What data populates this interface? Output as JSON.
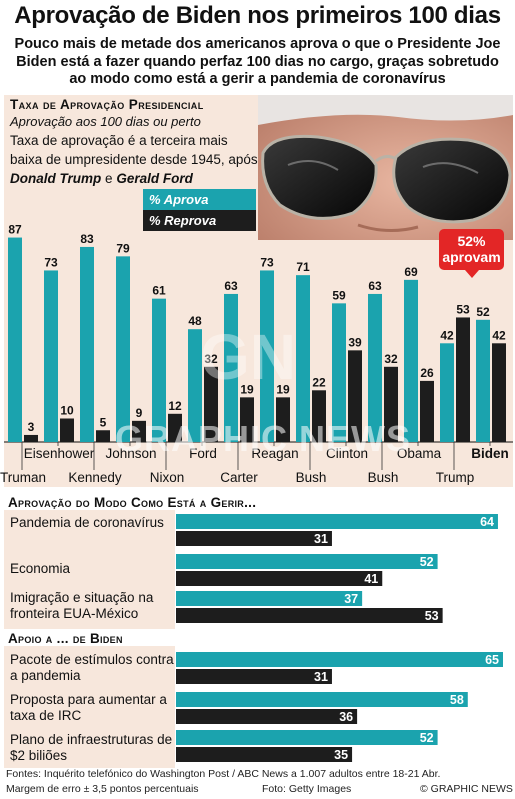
{
  "header": {
    "title": "Aprovação de Biden nos primeiros 100 dias",
    "subtitle": "Pouco mais de metade dos americanos aprova o que o Presidente Joe Biden está a fazer quando perfaz 100 dias no cargo, graças sobretudo ao modo como está a gerir a pandemia de coronavírus"
  },
  "approval_panel": {
    "title": "Taxa de Aprovação Presidencial",
    "subtitle": "Aprovação aos 100 dias ou perto",
    "note_prefix": "Taxa de aprovação é a terceira mais baixa de umpresidente desde 1945, após",
    "note_name1": "Donald Trump",
    "note_and": "e",
    "note_name2": "Gerald Ford",
    "legend_approve": "% Aprova",
    "legend_disapprove": "% Reprova",
    "callout": "52% aprovam"
  },
  "colors": {
    "approve": "#1ba3ae",
    "disapprove": "#1d1d1d",
    "panel": "#f7e7dc",
    "callout": "#e32626"
  },
  "chart_data": [
    {
      "type": "bar",
      "title": "Taxa de Aprovação Presidencial",
      "categories": [
        "Truman",
        "Eisenhower",
        "Kennedy",
        "Johnson",
        "Nixon",
        "Ford",
        "Carter",
        "Reagan",
        "Bush",
        "Clinton",
        "Bush",
        "Obama",
        "Trump",
        "Biden"
      ],
      "series": [
        {
          "name": "% Aprova",
          "values": [
            87,
            73,
            83,
            79,
            61,
            48,
            63,
            73,
            71,
            59,
            63,
            69,
            42,
            52
          ]
        },
        {
          "name": "% Reprova",
          "values": [
            3,
            10,
            5,
            9,
            12,
            32,
            19,
            19,
            22,
            39,
            32,
            26,
            53,
            42
          ]
        }
      ],
      "ylim": [
        0,
        100
      ]
    },
    {
      "type": "bar",
      "title": "Aprovação do Modo Como Está a Gerir...",
      "categories": [
        "Pandemia de coronavírus",
        "Economia",
        "Imigração e situação na fronteira EUA-México"
      ],
      "series": [
        {
          "name": "% Aprova",
          "values": [
            64,
            52,
            37
          ]
        },
        {
          "name": "% Reprova",
          "values": [
            31,
            41,
            53
          ]
        }
      ],
      "xlim": [
        0,
        65
      ]
    },
    {
      "type": "bar",
      "title": "Apoio a ... de Biden",
      "categories": [
        "Pacote de estímulos contra a pandemia",
        "Proposta para aumentar a taxa de IRC",
        "Plano de infraestruturas de $2 biliões"
      ],
      "series": [
        {
          "name": "% Aprova",
          "values": [
            65,
            58,
            52
          ]
        },
        {
          "name": "% Reprova",
          "values": [
            31,
            36,
            35
          ]
        }
      ],
      "xlim": [
        0,
        65
      ]
    }
  ],
  "footer": {
    "source": "Fontes: Inquérito telefónico do Washington Post / ABC News a 1.007 adultos entre 18-21 Abr.",
    "margin": "Margem de erro ± 3,5 pontos percentuais",
    "photo": "Foto: Getty Images",
    "credit": "© GRAPHIC NEWS"
  },
  "watermark": {
    "brand": "GRAPHIC NEWS",
    "logo": "GN"
  }
}
